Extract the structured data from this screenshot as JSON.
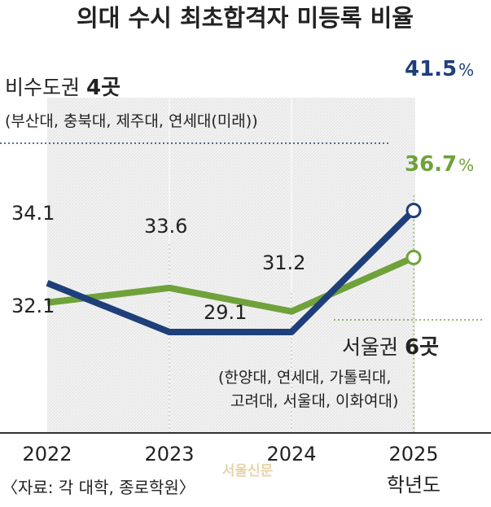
{
  "chart_data": {
    "type": "line",
    "title": "의대 수시 최초합격자 미등록 비율",
    "categories": [
      "2022",
      "2023",
      "2024",
      "2025"
    ],
    "xlabel": "학년도",
    "ylabel": "",
    "unit": "%",
    "ylim": [
      26,
      43
    ],
    "grid": false,
    "series": [
      {
        "name": "비수도권",
        "count_label": "4곳",
        "members_label": "(부산대, 충북대, 제주대, 연세대(미래))",
        "color": "#1e3f7a",
        "values": [
          34.1,
          29.1,
          29.1,
          41.5
        ],
        "labels": [
          "34.1",
          "",
          "29.1",
          "41.5"
        ]
      },
      {
        "name": "서울권",
        "count_label": "6곳",
        "members_label": [
          "(한양대, 연세대, 가톨릭대,",
          "고려대, 서울대, 이화여대)"
        ],
        "color": "#6fa23a",
        "values": [
          32.1,
          33.6,
          31.2,
          36.7
        ],
        "labels": [
          "32.1",
          "33.6",
          "31.2",
          "36.7"
        ]
      }
    ],
    "source": "〈자료: 각 대학, 종로학원〉",
    "watermark": "서울신문"
  }
}
